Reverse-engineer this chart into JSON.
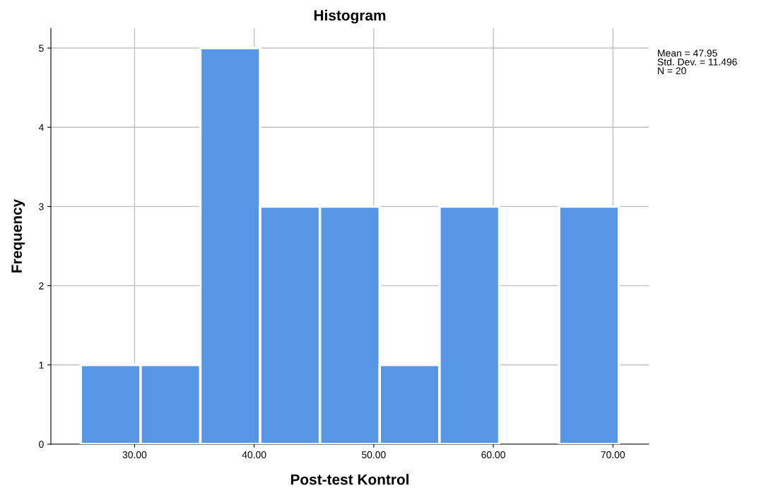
{
  "chart_data": {
    "type": "histogram",
    "title": "Histogram",
    "xlabel": "Post-test Kontrol",
    "ylabel": "Frequency",
    "bins": [
      25.5,
      30.5,
      35.5,
      40.5,
      45.5,
      50.5,
      55.5,
      60.5,
      65.5,
      70.5
    ],
    "values": [
      1,
      1,
      5,
      3,
      3,
      1,
      3,
      0,
      3
    ],
    "color": "#5596e6",
    "xlim": [
      23,
      73
    ],
    "ylim": [
      0,
      5.25
    ],
    "xticks": [
      {
        "value": 30,
        "label": "30.00"
      },
      {
        "value": 40,
        "label": "40.00"
      },
      {
        "value": 50,
        "label": "50.00"
      },
      {
        "value": 60,
        "label": "60.00"
      },
      {
        "value": 70,
        "label": "70.00"
      }
    ],
    "yticks": [
      0,
      1,
      2,
      3,
      4,
      5
    ],
    "grid": true,
    "annotations": [
      "Mean = 47.95\nStd. Dev. = 11.496\nN = 20"
    ]
  }
}
